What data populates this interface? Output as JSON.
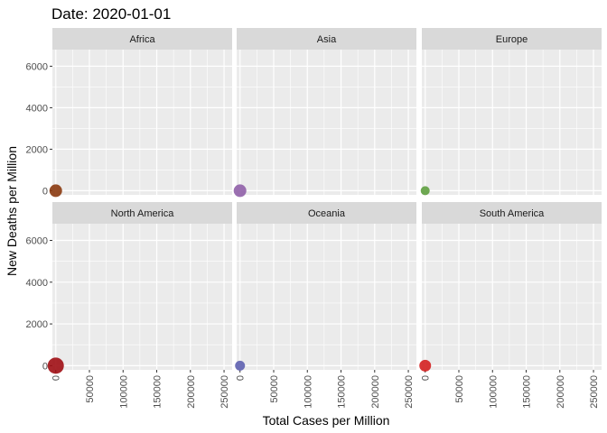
{
  "chart_data": {
    "type": "scatter",
    "title": "Date: 2020-01-01",
    "xlabel": "Total Cases per Million",
    "ylabel": "New Deaths per Million",
    "xlim": [
      -5000,
      262000
    ],
    "ylim": [
      -200,
      6800
    ],
    "xticks": [
      0,
      50000,
      100000,
      150000,
      200000,
      250000
    ],
    "yticks": [
      0,
      2000,
      4000,
      6000
    ],
    "grid": true,
    "legend": "none",
    "facets": [
      {
        "name": "Africa",
        "color": "#8B3A0F",
        "points": [
          {
            "x": 0,
            "y": 0,
            "size": 7
          }
        ]
      },
      {
        "name": "Asia",
        "color": "#9060A8",
        "points": [
          {
            "x": 0,
            "y": 0,
            "size": 7
          }
        ]
      },
      {
        "name": "Europe",
        "color": "#5FA040",
        "points": [
          {
            "x": 0,
            "y": 0,
            "size": 5
          }
        ]
      },
      {
        "name": "North America",
        "color": "#A00E14",
        "points": [
          {
            "x": 0,
            "y": 0,
            "size": 9
          }
        ]
      },
      {
        "name": "Oceania",
        "color": "#5E60B0",
        "points": [
          {
            "x": 0,
            "y": 0,
            "size": 5.5
          }
        ]
      },
      {
        "name": "South America",
        "color": "#D42020",
        "points": [
          {
            "x": 0,
            "y": 0,
            "size": 6.5
          }
        ]
      }
    ]
  }
}
